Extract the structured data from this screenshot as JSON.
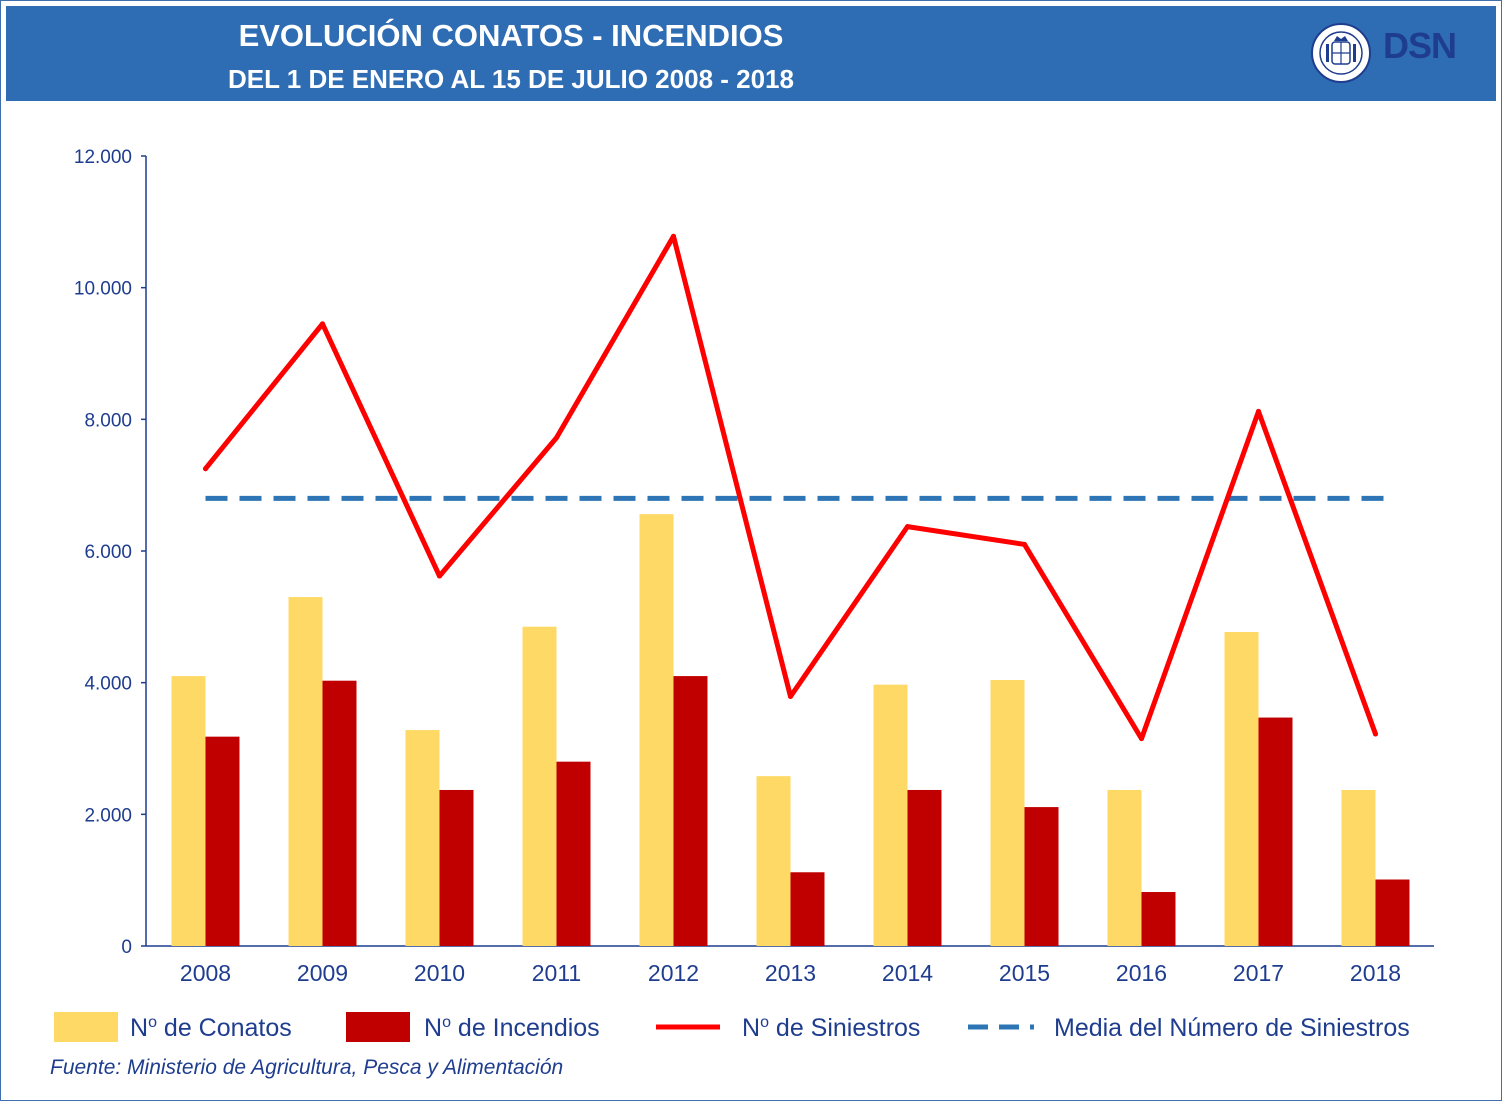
{
  "header": {
    "title": "EVOLUCIÓN CONATOS - INCENDIOS",
    "subtitle": "DEL 1 DE ENERO AL 15 DE JULIO 2008 - 2018",
    "logo_text": "DSN",
    "logo_icon": "government-seal-icon"
  },
  "colors": {
    "header_bg": "#2e6db4",
    "conatos": "#ffd966",
    "incendios": "#c00000",
    "siniestros": "#ff0000",
    "media": "#2e75b6",
    "text": "#1f3d8f"
  },
  "chart_data": {
    "type": "bar",
    "title": "EVOLUCIÓN CONATOS - INCENDIOS",
    "subtitle": "DEL 1 DE ENERO AL 15 DE JULIO 2008 - 2018",
    "categories": [
      "2008",
      "2009",
      "2010",
      "2011",
      "2012",
      "2013",
      "2014",
      "2015",
      "2016",
      "2017",
      "2018"
    ],
    "ylim": [
      0,
      12000
    ],
    "yticks": [
      0,
      2000,
      4000,
      6000,
      8000,
      10000,
      12000
    ],
    "ytick_labels": [
      "0",
      "2.000",
      "4.000",
      "6.000",
      "8.000",
      "10.000",
      "12.000"
    ],
    "grid": false,
    "legend_position": "bottom",
    "series": [
      {
        "name": "Nº de Conatos",
        "type": "bar",
        "values": [
          4100,
          5300,
          3280,
          4850,
          6560,
          2580,
          3970,
          4040,
          2370,
          4770,
          2370
        ]
      },
      {
        "name": "Nº de Incendios",
        "type": "bar",
        "values": [
          3180,
          4030,
          2370,
          2800,
          4100,
          1120,
          2370,
          2110,
          820,
          3470,
          1010
        ]
      },
      {
        "name": "Nº de Siniestros",
        "type": "line",
        "values": [
          7250,
          9450,
          5620,
          7720,
          10780,
          3790,
          6370,
          6100,
          3150,
          8120,
          3220
        ]
      },
      {
        "name": "Media del Número de Siniestros",
        "type": "line-dashed",
        "values": [
          6800,
          6800,
          6800,
          6800,
          6800,
          6800,
          6800,
          6800,
          6800,
          6800,
          6800
        ]
      }
    ]
  },
  "legend": {
    "conatos_prefix": "N",
    "conatos_sup": "o",
    "conatos_suffix": " de Conatos",
    "incendios_prefix": "N",
    "incendios_sup": "o",
    "incendios_suffix": " de Incendios",
    "siniestros_prefix": "N",
    "siniestros_sup": "o",
    "siniestros_suffix": " de Siniestros",
    "media_label": "Media del Número de Siniestros"
  },
  "source": "Fuente: Ministerio de Agricultura, Pesca y Alimentación"
}
